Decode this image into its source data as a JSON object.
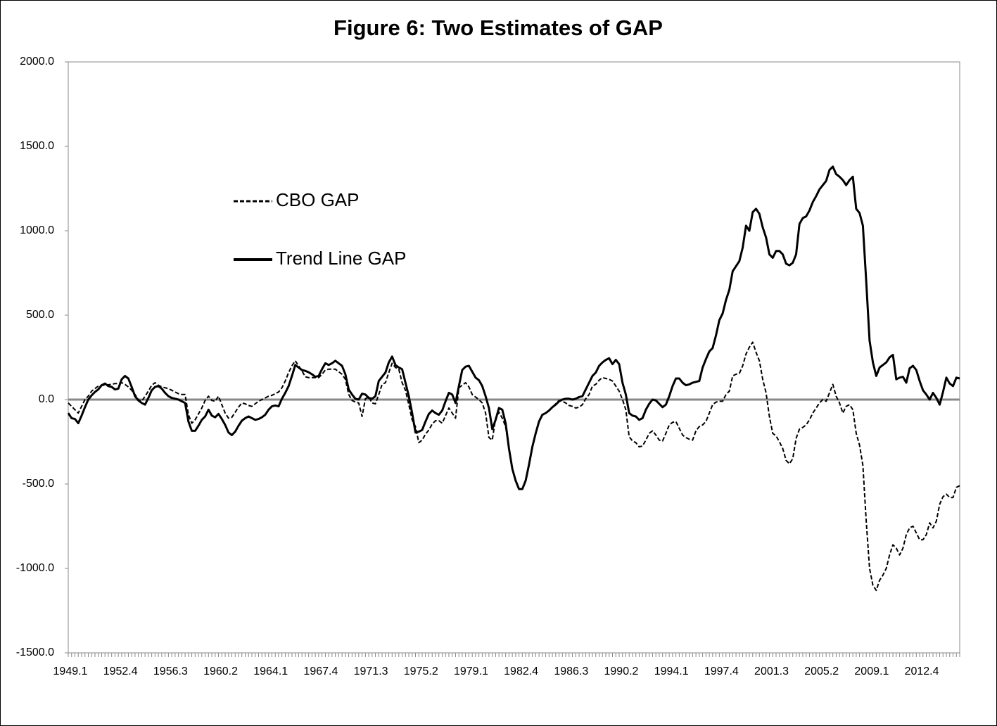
{
  "chart_data": {
    "type": "line",
    "title": "Figure 6: Two Estimates of GAP",
    "legend": "upper left",
    "categories": [
      "1949.1",
      null,
      null,
      null,
      null,
      null,
      null,
      null,
      null,
      null,
      null,
      null,
      null,
      null,
      null,
      "1952.4",
      null,
      null,
      null,
      null,
      null,
      null,
      null,
      null,
      null,
      null,
      null,
      null,
      null,
      null,
      "1956.3",
      null,
      null,
      null,
      null,
      null,
      null,
      null,
      null,
      null,
      null,
      null,
      null,
      null,
      null,
      "1960.2",
      null,
      null,
      null,
      null,
      null,
      null,
      null,
      null,
      null,
      null,
      null,
      null,
      null,
      null,
      "1964.1",
      null,
      null,
      null,
      null,
      null,
      null,
      null,
      null,
      null,
      null,
      null,
      null,
      null,
      null,
      "1967.4",
      null,
      null,
      null,
      null,
      null,
      null,
      null,
      null,
      null,
      null,
      null,
      null,
      null,
      null,
      "1971.3",
      null,
      null,
      null,
      null,
      null,
      null,
      null,
      null,
      null,
      null,
      null,
      null,
      null,
      null,
      "1975.2",
      null,
      null,
      null,
      null,
      null,
      null,
      null,
      null,
      null,
      null,
      null,
      null,
      null,
      null,
      "1979.1",
      null,
      null,
      null,
      null,
      null,
      null,
      null,
      null,
      null,
      null,
      null,
      null,
      null,
      null,
      "1982.4",
      null,
      null,
      null,
      null,
      null,
      null,
      null,
      null,
      null,
      null,
      null,
      null,
      null,
      null,
      "1986.3",
      null,
      null,
      null,
      null,
      null,
      null,
      null,
      null,
      null,
      null,
      null,
      null,
      null,
      null,
      "1990.2",
      null,
      null,
      null,
      null,
      null,
      null,
      null,
      null,
      null,
      null,
      null,
      null,
      null,
      null,
      "1994.1",
      null,
      null,
      null,
      null,
      null,
      null,
      null,
      null,
      null,
      null,
      null,
      null,
      null,
      null,
      "1997.4",
      null,
      null,
      null,
      null,
      null,
      null,
      null,
      null,
      null,
      null,
      null,
      null,
      null,
      null,
      "2001.3",
      null,
      null,
      null,
      null,
      null,
      null,
      null,
      null,
      null,
      null,
      null,
      null,
      null,
      null,
      "2005.2",
      null,
      null,
      null,
      null,
      null,
      null,
      null,
      null,
      null,
      null,
      null,
      null,
      null,
      null,
      "2009.1",
      null,
      null,
      null,
      null,
      null,
      null,
      null,
      null,
      null,
      null,
      null,
      null,
      null,
      null,
      "2012.4",
      null,
      null,
      null,
      null,
      null,
      null,
      null,
      null,
      null,
      null,
      null,
      null
    ],
    "series": [
      {
        "name": "CBO GAP",
        "color": "#000000",
        "style": "dashed",
        "values": [
          -20,
          -40,
          -60,
          -80,
          -40,
          0,
          20,
          50,
          65,
          80,
          85,
          85,
          88,
          90,
          95,
          95,
          100,
          90,
          75,
          55,
          30,
          0,
          -10,
          20,
          50,
          85,
          100,
          85,
          75,
          70,
          65,
          55,
          45,
          35,
          30,
          30,
          -90,
          -140,
          -120,
          -85,
          -50,
          -5,
          20,
          -5,
          -10,
          20,
          -30,
          -80,
          -110,
          -105,
          -75,
          -45,
          -20,
          -25,
          -35,
          -40,
          -25,
          -10,
          0,
          10,
          20,
          25,
          35,
          45,
          70,
          110,
          160,
          200,
          230,
          200,
          170,
          135,
          130,
          130,
          130,
          130,
          150,
          175,
          180,
          180,
          180,
          165,
          150,
          120,
          30,
          -5,
          -15,
          -20,
          -100,
          5,
          15,
          -20,
          -25,
          30,
          90,
          100,
          160,
          215,
          190,
          180,
          100,
          55,
          -30,
          -120,
          -160,
          -255,
          -240,
          -205,
          -180,
          -145,
          -125,
          -125,
          -140,
          -95,
          -50,
          -80,
          -110,
          70,
          85,
          100,
          75,
          30,
          15,
          0,
          -20,
          -80,
          -225,
          -240,
          -110,
          -75,
          -110,
          -160,
          -290,
          -410,
          -480,
          -530,
          -530,
          -480,
          -385,
          -280,
          -200,
          -130,
          -90,
          -80,
          -65,
          -45,
          -25,
          -5,
          -10,
          -20,
          -35,
          -40,
          -50,
          -45,
          -30,
          5,
          30,
          80,
          90,
          115,
          130,
          125,
          120,
          110,
          80,
          50,
          0,
          -60,
          -220,
          -245,
          -255,
          -280,
          -275,
          -240,
          -200,
          -185,
          -210,
          -240,
          -245,
          -200,
          -150,
          -135,
          -130,
          -170,
          -210,
          -225,
          -235,
          -240,
          -185,
          -160,
          -150,
          -130,
          -80,
          -30,
          -15,
          -10,
          -10,
          30,
          50,
          140,
          150,
          155,
          200,
          270,
          310,
          340,
          280,
          230,
          120,
          40,
          -100,
          -200,
          -215,
          -250,
          -290,
          -360,
          -380,
          -350,
          -230,
          -175,
          -165,
          -150,
          -120,
          -80,
          -50,
          -20,
          0,
          -10,
          40,
          90,
          20,
          -20,
          -80,
          -40,
          -30,
          -60,
          -200,
          -270,
          -390,
          -720,
          -1000,
          -1100,
          -1130,
          -1070,
          -1040,
          -1000,
          -920,
          -860,
          -880,
          -920,
          -880,
          -800,
          -760,
          -750,
          -790,
          -830,
          -830,
          -800,
          -730,
          -760,
          -720,
          -620,
          -575,
          -560,
          -580,
          -580,
          -520,
          -510
        ]
      },
      {
        "name": "Trend Line GAP",
        "color": "#000000",
        "style": "solid",
        "values": [
          -80,
          -110,
          -115,
          -140,
          -95,
          -45,
          0,
          25,
          45,
          60,
          85,
          95,
          80,
          75,
          60,
          65,
          120,
          140,
          125,
          75,
          20,
          -5,
          -20,
          -30,
          10,
          55,
          75,
          80,
          65,
          40,
          20,
          10,
          5,
          0,
          -10,
          -20,
          -130,
          -185,
          -185,
          -155,
          -120,
          -100,
          -60,
          -95,
          -105,
          -85,
          -115,
          -150,
          -195,
          -210,
          -190,
          -155,
          -125,
          -110,
          -100,
          -110,
          -120,
          -115,
          -105,
          -90,
          -60,
          -40,
          -35,
          -40,
          5,
          40,
          80,
          140,
          205,
          190,
          175,
          170,
          162,
          150,
          135,
          140,
          180,
          215,
          205,
          215,
          230,
          215,
          200,
          150,
          60,
          30,
          5,
          0,
          35,
          30,
          10,
          5,
          20,
          110,
          135,
          160,
          220,
          255,
          205,
          190,
          180,
          100,
          20,
          -80,
          -195,
          -190,
          -180,
          -130,
          -85,
          -65,
          -80,
          -90,
          -65,
          -10,
          40,
          30,
          -20,
          80,
          175,
          195,
          200,
          165,
          130,
          115,
          80,
          20,
          -50,
          -175,
          -120,
          -50,
          -60,
          -140,
          -290,
          -410,
          -480,
          -530,
          -530,
          -480,
          -385,
          -280,
          -200,
          -130,
          -90,
          -80,
          -65,
          -45,
          -30,
          -10,
          0,
          5,
          5,
          0,
          5,
          15,
          20,
          60,
          100,
          140,
          160,
          200,
          220,
          235,
          245,
          210,
          235,
          210,
          100,
          30,
          -80,
          -95,
          -100,
          -120,
          -110,
          -60,
          -25,
          0,
          -5,
          -25,
          -45,
          -30,
          20,
          80,
          125,
          125,
          100,
          85,
          90,
          100,
          105,
          110,
          190,
          240,
          285,
          305,
          380,
          470,
          510,
          590,
          650,
          760,
          790,
          820,
          900,
          1030,
          1000,
          1110,
          1130,
          1100,
          1020,
          960,
          860,
          840,
          880,
          880,
          860,
          805,
          795,
          810,
          860,
          1040,
          1075,
          1085,
          1120,
          1170,
          1205,
          1245,
          1270,
          1295,
          1360,
          1380,
          1335,
          1320,
          1300,
          1270,
          1300,
          1320,
          1130,
          1105,
          1030,
          700,
          350,
          220,
          140,
          190,
          205,
          220,
          250,
          265,
          120,
          130,
          135,
          100,
          185,
          200,
          175,
          110,
          55,
          30,
          0,
          40,
          10,
          -30,
          45,
          130,
          95,
          80,
          130,
          125
        ]
      }
    ],
    "ylim": [
      -1500,
      2000
    ],
    "yticks": [
      {
        "value": -1500,
        "label": "-1500.0"
      },
      {
        "value": -1000,
        "label": "-1000.0"
      },
      {
        "value": -500,
        "label": "-500.0"
      },
      {
        "value": 0,
        "label": "0.0"
      },
      {
        "value": 500,
        "label": "500.0"
      },
      {
        "value": 1000,
        "label": "1000.0"
      },
      {
        "value": 1500,
        "label": "1500.0"
      },
      {
        "value": 2000,
        "label": "2000.0"
      }
    ]
  }
}
